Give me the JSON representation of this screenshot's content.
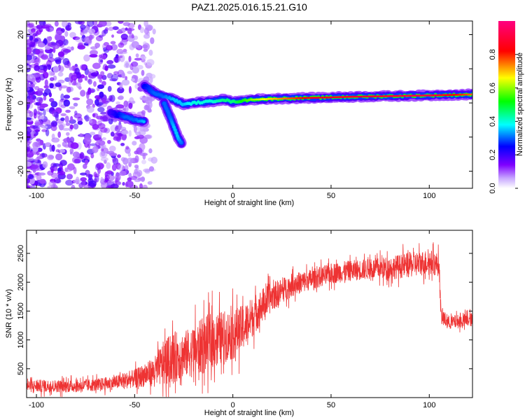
{
  "figure": {
    "title": "PAZ1.2025.016.15.21.G10"
  },
  "chart_data": [
    {
      "type": "heatmap",
      "title": "PAZ1.2025.016.15.21.G10",
      "xlabel": "Height of straight line (km)",
      "ylabel": "Frequency (Hz)",
      "xlim": [
        -105,
        122
      ],
      "ylim": [
        -25,
        24
      ],
      "x_ticks": [
        -100,
        -50,
        0,
        50,
        100
      ],
      "y_ticks": [
        -20,
        -10,
        0,
        10,
        20
      ],
      "grid": false,
      "colorbar": {
        "label": "Normalized spectral amplitude",
        "range": [
          0,
          1
        ],
        "ticks": [
          0.0,
          0.2,
          0.4,
          0.6,
          0.8
        ],
        "colormap": "rainbow",
        "colors": [
          "#ffffff",
          "#7f00ff",
          "#0000ff",
          "#00ffff",
          "#00ff00",
          "#ffff00",
          "#ff0000",
          "#ff0080"
        ]
      },
      "features": [
        {
          "name": "main_track",
          "points": [
            [
              -45,
              5
            ],
            [
              -40,
              3
            ],
            [
              -36,
              2
            ],
            [
              -30,
              1
            ],
            [
              -25,
              -0.5
            ],
            [
              -20,
              0
            ],
            [
              -10,
              0.5
            ],
            [
              -5,
              1
            ],
            [
              0,
              0.3
            ],
            [
              10,
              1
            ],
            [
              20,
              1.2
            ],
            [
              40,
              1.5
            ],
            [
              60,
              1.8
            ],
            [
              80,
              2
            ],
            [
              100,
              2.2
            ],
            [
              122,
              2.5
            ]
          ],
          "amplitude": [
            0.25,
            0.3,
            0.3,
            0.35,
            0.35,
            0.4,
            0.4,
            0.45,
            0.45,
            0.6,
            0.7,
            0.85,
            0.88,
            0.9,
            0.92,
            0.75
          ]
        },
        {
          "name": "lower_branch",
          "points": [
            [
              -62,
              -3
            ],
            [
              -55,
              -4
            ],
            [
              -50,
              -5
            ],
            [
              -45,
              -5.5
            ]
          ],
          "amplitude": [
            0.2,
            0.3,
            0.3,
            0.35
          ]
        },
        {
          "name": "descending_branch",
          "points": [
            [
              -35,
              0
            ],
            [
              -32,
              -4
            ],
            [
              -30,
              -7
            ],
            [
              -28,
              -10
            ],
            [
              -26,
              -12
            ]
          ],
          "amplitude": [
            0.3,
            0.3,
            0.35,
            0.35,
            0.3
          ]
        },
        {
          "name": "noise_region",
          "x_range": [
            -105,
            -40
          ],
          "y_range": [
            -25,
            24
          ],
          "amplitude_range": [
            0.02,
            0.18
          ]
        }
      ]
    },
    {
      "type": "line",
      "xlabel": "Height of straight line (km)",
      "ylabel": "SNR (10 * v/v)",
      "xlim": [
        -105,
        122
      ],
      "ylim": [
        0,
        2900
      ],
      "x_ticks": [
        -100,
        -50,
        0,
        50,
        100
      ],
      "y_ticks": [
        500,
        1000,
        1500,
        2000,
        2500
      ],
      "grid": false,
      "color": "#ee3333",
      "series": [
        {
          "x": [
            -105,
            -90,
            -80,
            -70,
            -60,
            -50,
            -40,
            -35,
            -30,
            -25,
            -20,
            -15,
            -10,
            -5,
            0,
            5,
            10,
            15,
            20,
            25,
            30,
            40,
            50,
            60,
            70,
            80,
            90,
            100,
            105,
            106,
            110,
            122
          ],
          "y": [
            200,
            200,
            200,
            220,
            260,
            330,
            450,
            600,
            700,
            750,
            800,
            900,
            1000,
            1050,
            1100,
            1200,
            1400,
            1600,
            1750,
            1850,
            1950,
            2050,
            2150,
            2200,
            2230,
            2250,
            2300,
            2350,
            2300,
            1400,
            1300,
            1350
          ],
          "noise_amplitude": [
            110,
            110,
            110,
            110,
            120,
            160,
            250,
            400,
            450,
            400,
            450,
            500,
            500,
            450,
            450,
            400,
            350,
            300,
            250,
            220,
            200,
            180,
            180,
            180,
            180,
            200,
            220,
            220,
            200,
            150,
            120,
            120
          ]
        }
      ]
    }
  ]
}
